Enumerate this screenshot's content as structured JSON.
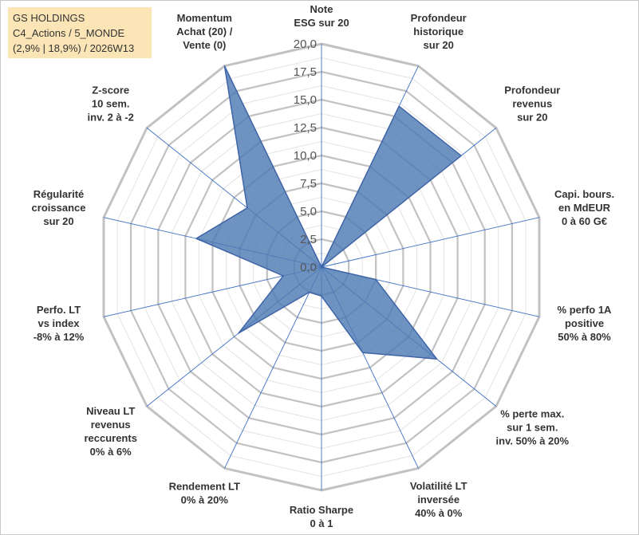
{
  "title_box": {
    "line1": "GS HOLDINGS",
    "line2": "C4_Actions / 5_MONDE",
    "line3": "(2,9% | 18,9%) / 2026W13"
  },
  "colors": {
    "fill": "#4f7bb3",
    "stroke": "#3f64a8",
    "spoke": "#3c6fc4",
    "ring": "#c4c4c4",
    "title_bg": "#fbe5b6"
  },
  "chart_data": {
    "type": "radar",
    "rmin": 0,
    "rmax": 20,
    "ticks": [
      "0,0",
      "2,5",
      "5,0",
      "7,5",
      "10,0",
      "12,5",
      "15,0",
      "17,5",
      "20,0"
    ],
    "axes": [
      {
        "label": [
          "Note",
          "ESG sur 20"
        ],
        "value": 0
      },
      {
        "label": [
          "Profondeur",
          "historique",
          "sur 20"
        ],
        "value": 16
      },
      {
        "label": [
          "Profondeur",
          "revenus",
          "sur 20"
        ],
        "value": 16
      },
      {
        "label": [
          "Capi. bours.",
          "en MdEUR",
          "0 à 60 G€"
        ],
        "value": 0
      },
      {
        "label": [
          "% perfo 1A",
          "positive",
          "50% à 80%"
        ],
        "value": 5
      },
      {
        "label": [
          "% perte max.",
          "sur 1 sem.",
          "inv. 50% à 20%"
        ],
        "value": 13.2
      },
      {
        "label": [
          "Volatilité LT",
          "inversée",
          "40% à 0%"
        ],
        "value": 8.5
      },
      {
        "label": [
          "Ratio Sharpe",
          "0 à 1"
        ],
        "value": 2.6
      },
      {
        "label": [
          "Rendement LT",
          "0% à 20%"
        ],
        "value": 2.5
      },
      {
        "label": [
          "Niveau LT",
          "revenus",
          "reccurents",
          "0% à 6%"
        ],
        "value": 9.5
      },
      {
        "label": [
          "Perfo. LT",
          "vs index",
          "-8% à 12%"
        ],
        "value": 3.5
      },
      {
        "label": [
          "Régularité",
          "croissance",
          "sur 20"
        ],
        "value": 11.5
      },
      {
        "label": [
          "Z-score",
          "10 sem.",
          "inv. 2 à -2"
        ],
        "value": 8.5
      },
      {
        "label": [
          "Momentum",
          "Achat (20) /",
          "Vente (0)"
        ],
        "value": 20
      }
    ]
  }
}
